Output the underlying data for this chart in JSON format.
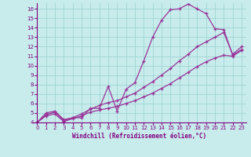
{
  "line1_x": [
    0,
    1,
    2,
    3,
    4,
    5,
    6,
    7,
    8,
    9,
    10,
    11,
    12,
    13,
    14,
    15,
    16,
    17,
    18,
    19,
    20,
    21,
    22,
    23
  ],
  "line1_y": [
    4.0,
    5.0,
    5.2,
    4.3,
    4.5,
    4.5,
    5.5,
    5.5,
    7.8,
    5.2,
    7.5,
    8.2,
    10.5,
    13.0,
    14.8,
    15.9,
    16.0,
    16.5,
    16.0,
    15.5,
    13.9,
    13.8,
    11.1,
    11.7
  ],
  "line2_x": [
    0,
    1,
    2,
    3,
    4,
    5,
    6,
    7,
    8,
    9,
    10,
    11,
    12,
    13,
    14,
    15,
    16,
    17,
    18,
    19,
    20,
    21,
    22,
    23
  ],
  "line2_y": [
    4.0,
    4.8,
    5.1,
    4.2,
    4.5,
    4.9,
    5.4,
    5.8,
    6.1,
    6.3,
    6.7,
    7.1,
    7.7,
    8.3,
    9.0,
    9.7,
    10.5,
    11.2,
    12.0,
    12.5,
    13.0,
    13.5,
    11.2,
    12.0
  ],
  "line3_x": [
    0,
    1,
    2,
    3,
    4,
    5,
    6,
    7,
    8,
    9,
    10,
    11,
    12,
    13,
    14,
    15,
    16,
    17,
    18,
    19,
    20,
    21,
    22,
    23
  ],
  "line3_y": [
    4.0,
    4.7,
    4.9,
    4.1,
    4.4,
    4.7,
    5.1,
    5.3,
    5.5,
    5.7,
    6.0,
    6.3,
    6.7,
    7.1,
    7.6,
    8.1,
    8.7,
    9.3,
    9.9,
    10.4,
    10.8,
    11.1,
    11.0,
    11.6
  ],
  "line_color": "#993399",
  "bg_color": "#c8ecec",
  "grid_color": "#a0d4d4",
  "axis_color": "#800080",
  "xlabel": "Windchill (Refroidissement éolien,°C)",
  "xlim": [
    -0.5,
    23.5
  ],
  "ylim": [
    4,
    16
  ],
  "xticks": [
    0,
    1,
    2,
    3,
    4,
    5,
    6,
    7,
    8,
    9,
    10,
    11,
    12,
    13,
    14,
    15,
    16,
    17,
    18,
    19,
    20,
    21,
    22,
    23
  ],
  "yticks": [
    4,
    5,
    6,
    7,
    8,
    9,
    10,
    11,
    12,
    13,
    14,
    15,
    16
  ],
  "tick_fontsize": 5.0,
  "xlabel_fontsize": 5.5
}
